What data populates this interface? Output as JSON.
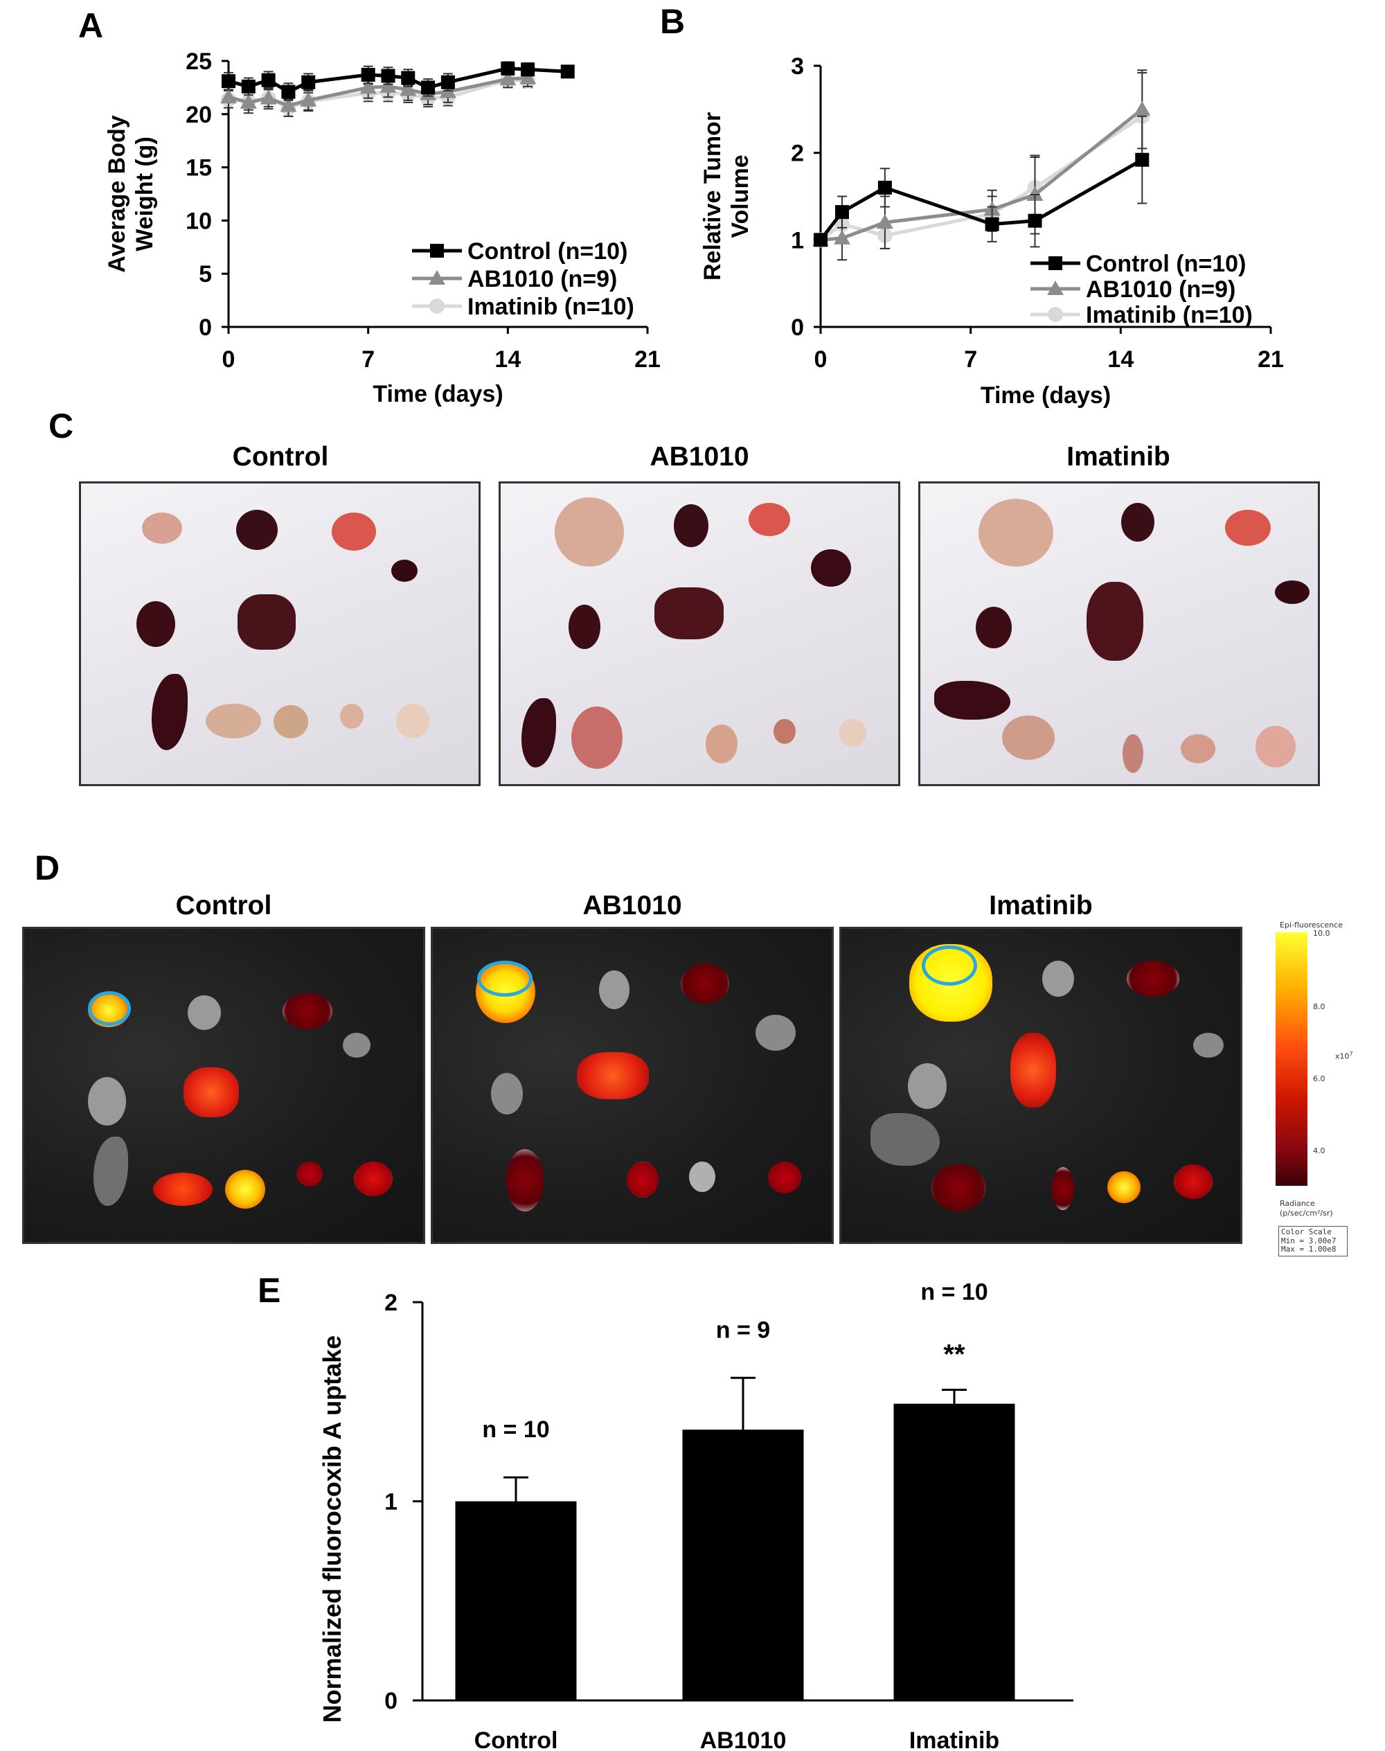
{
  "panels": {
    "a": {
      "letter": "A"
    },
    "b": {
      "letter": "B"
    },
    "c": {
      "letter": "C",
      "groups": [
        "Control",
        "AB1010",
        "Imatinib"
      ]
    },
    "d": {
      "letter": "D",
      "groups": [
        "Control",
        "AB1010",
        "Imatinib"
      ]
    },
    "e": {
      "letter": "E"
    }
  },
  "colorbar": {
    "title": "Epi-fluorescence",
    "max_label": "10.0",
    "ticks": [
      "8.0",
      "6.0",
      "4.0"
    ],
    "multiplier": "x10",
    "exponent": "7",
    "unit_label": "Radiance",
    "unit": "(p/sec/cm²/sr)",
    "scale_title": "Color Scale",
    "scale_min": "Min = 3.00e7",
    "scale_max": "Max = 1.00e8"
  },
  "colors": {
    "control": "#000000",
    "ab1010": "#8c8c8c",
    "imatinib": "#d9d9d9",
    "roi_circle": "#29a8e0",
    "bar": "#000000"
  },
  "chart_data": [
    {
      "id": "A",
      "type": "line",
      "title": "",
      "xlabel": "Time (days)",
      "ylabel": "Average Body Weight (g)",
      "xlim": [
        0,
        21
      ],
      "ylim": [
        0,
        25
      ],
      "xticks": [
        0,
        7,
        14,
        21
      ],
      "yticks": [
        0,
        5,
        10,
        15,
        20,
        25
      ],
      "legend_position": "lower-right",
      "series": [
        {
          "name": "Control (n=10)",
          "marker": "square",
          "color": "#000000",
          "x": [
            0,
            1,
            2,
            3,
            4,
            7,
            8,
            9,
            10,
            11,
            14,
            15,
            17
          ],
          "y": [
            23.1,
            22.6,
            23.2,
            22.1,
            23.0,
            23.7,
            23.6,
            23.4,
            22.5,
            23.0,
            24.3,
            24.2,
            24.0
          ],
          "err": [
            0.8,
            0.8,
            0.8,
            0.8,
            0.8,
            0.8,
            0.8,
            0.8,
            0.8,
            0.8,
            0.6,
            0.6,
            0.4
          ]
        },
        {
          "name": "AB1010 (n=9)",
          "marker": "triangle",
          "color": "#8c8c8c",
          "x": [
            0,
            1,
            2,
            3,
            4,
            7,
            8,
            9,
            10,
            11,
            14,
            15
          ],
          "y": [
            21.6,
            21.1,
            21.5,
            20.8,
            21.3,
            22.5,
            22.6,
            22.3,
            21.9,
            22.1,
            23.3,
            23.4
          ],
          "err": [
            1.0,
            1.0,
            1.0,
            1.0,
            1.0,
            1.0,
            1.0,
            1.0,
            1.0,
            1.0,
            0.8,
            0.8
          ]
        },
        {
          "name": "Imatinib (n=10)",
          "marker": "circle",
          "color": "#d9d9d9",
          "x": [
            0,
            1,
            2,
            3,
            4,
            7,
            8,
            9,
            10,
            11,
            14,
            15
          ],
          "y": [
            21.4,
            21.2,
            21.5,
            20.6,
            21.2,
            22.0,
            22.0,
            21.9,
            21.5,
            21.6,
            23.2,
            23.1
          ],
          "err": [
            0.8,
            0.8,
            0.8,
            0.8,
            0.8,
            0.8,
            0.8,
            0.8,
            0.8,
            0.8,
            0.6,
            0.6
          ]
        }
      ]
    },
    {
      "id": "B",
      "type": "line",
      "title": "",
      "xlabel": "Time (days)",
      "ylabel": "Relative Tumor Volume",
      "xlim": [
        0,
        21
      ],
      "ylim": [
        0,
        3
      ],
      "xticks": [
        0,
        7,
        14,
        21
      ],
      "yticks": [
        0,
        1,
        2,
        3
      ],
      "legend_position": "lower-right",
      "series": [
        {
          "name": "Control (n=10)",
          "marker": "square",
          "color": "#000000",
          "x": [
            0,
            1,
            3,
            8,
            10,
            15
          ],
          "y": [
            1.0,
            1.32,
            1.6,
            1.18,
            1.22,
            1.92
          ],
          "err": [
            0.0,
            0.18,
            0.22,
            0.2,
            0.3,
            0.5
          ]
        },
        {
          "name": "AB1010 (n=9)",
          "marker": "triangle",
          "color": "#8c8c8c",
          "x": [
            0,
            1,
            3,
            8,
            10,
            15
          ],
          "y": [
            1.0,
            1.02,
            1.2,
            1.35,
            1.52,
            2.5
          ],
          "err": [
            0.0,
            0.25,
            0.3,
            0.22,
            0.45,
            0.45
          ]
        },
        {
          "name": "Imatinib (n=10)",
          "marker": "circle",
          "color": "#d9d9d9",
          "x": [
            0,
            1,
            3,
            8,
            10,
            15
          ],
          "y": [
            1.0,
            1.18,
            1.05,
            1.3,
            1.6,
            2.42
          ],
          "err": [
            0.0,
            0.2,
            0.15,
            0.2,
            0.35,
            0.5
          ]
        }
      ]
    },
    {
      "id": "E",
      "type": "bar",
      "title": "",
      "xlabel": "",
      "ylabel": "Normalized fluorocoxib  A uptake",
      "ylim": [
        0,
        2
      ],
      "yticks": [
        0,
        1,
        2
      ],
      "categories": [
        "Control",
        "AB1010",
        "Imatinib"
      ],
      "values": [
        1.0,
        1.36,
        1.49
      ],
      "errors": [
        0.12,
        0.26,
        0.07
      ],
      "annotations": [
        "n = 10",
        "n = 9",
        "n = 10"
      ],
      "significance": [
        "",
        "",
        "**"
      ]
    }
  ]
}
